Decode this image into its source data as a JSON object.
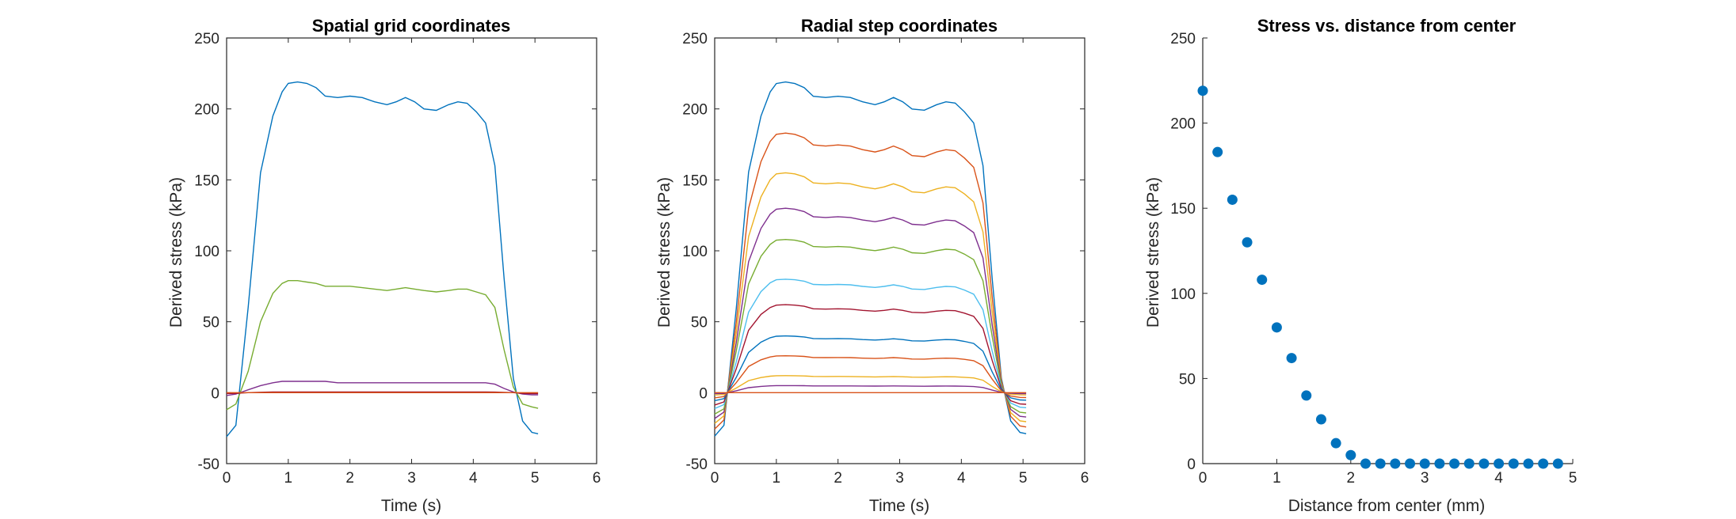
{
  "chart_data": [
    {
      "type": "line",
      "title": "Spatial grid coordinates",
      "xlabel": "Time (s)",
      "ylabel": "Derived stress (kPa)",
      "xlim": [
        0,
        6
      ],
      "ylim": [
        -50,
        250
      ],
      "xticks": [
        "0",
        "1",
        "2",
        "3",
        "4",
        "5",
        "6"
      ],
      "yticks": [
        "-50",
        "0",
        "50",
        "100",
        "150",
        "200",
        "250"
      ],
      "box": true,
      "grid": false,
      "x": [
        0,
        0.15,
        0.35,
        0.55,
        0.75,
        0.9,
        1.0,
        1.15,
        1.3,
        1.45,
        1.6,
        1.8,
        2.0,
        2.2,
        2.4,
        2.6,
        2.75,
        2.9,
        3.05,
        3.2,
        3.4,
        3.6,
        3.75,
        3.9,
        4.05,
        4.2,
        4.35,
        4.5,
        4.65,
        4.8,
        4.95,
        5.05
      ],
      "series": [
        {
          "color": "#0072BD",
          "values": [
            -31,
            -23,
            60,
            155,
            195,
            212,
            218,
            219,
            218,
            215,
            209,
            208,
            209,
            208,
            205,
            203,
            205,
            208,
            205,
            200,
            199,
            203,
            205,
            204,
            198,
            190,
            160,
            80,
            10,
            -20,
            -28,
            -29
          ]
        },
        {
          "color": "#77AC30",
          "values": [
            -12,
            -8,
            15,
            50,
            70,
            77,
            79,
            79,
            78,
            77,
            75,
            75,
            75,
            74,
            73,
            72,
            73,
            74,
            73,
            72,
            71,
            72,
            73,
            73,
            71,
            69,
            60,
            30,
            4,
            -8,
            -10,
            -11
          ]
        },
        {
          "color": "#7E2F8E",
          "values": [
            -2,
            -1,
            2,
            5,
            7,
            8,
            8,
            8,
            8,
            8,
            8,
            7,
            7,
            7,
            7,
            7,
            7,
            7,
            7,
            7,
            7,
            7,
            7,
            7,
            7,
            7,
            6,
            3,
            0.5,
            -1,
            -1.5,
            -1.5
          ]
        },
        {
          "color": "#A2142F",
          "values": [
            -0.6,
            -0.5,
            0,
            0.3,
            0.5,
            0.5,
            0.5,
            0.5,
            0.5,
            0.5,
            0.5,
            0.5,
            0.5,
            0.5,
            0.5,
            0.5,
            0.5,
            0.5,
            0.5,
            0.5,
            0.5,
            0.5,
            0.5,
            0.5,
            0.5,
            0.5,
            0.4,
            0.2,
            0,
            -0.5,
            -0.6,
            -0.6
          ]
        },
        {
          "color": "#D95319",
          "values": [
            0,
            0,
            0,
            0,
            0,
            0,
            0,
            0,
            0,
            0,
            0,
            0,
            0,
            0,
            0,
            0,
            0,
            0,
            0,
            0,
            0,
            0,
            0,
            0,
            0,
            0,
            0,
            0,
            0,
            0,
            0,
            0
          ]
        }
      ]
    },
    {
      "type": "line",
      "title": "Radial step coordinates",
      "xlabel": "Time (s)",
      "ylabel": "Derived stress (kPa)",
      "xlim": [
        0,
        6
      ],
      "ylim": [
        -50,
        250
      ],
      "xticks": [
        "0",
        "1",
        "2",
        "3",
        "4",
        "5",
        "6"
      ],
      "yticks": [
        "-50",
        "0",
        "50",
        "100",
        "150",
        "200",
        "250"
      ],
      "box": true,
      "grid": false,
      "x": [
        0,
        0.15,
        0.35,
        0.55,
        0.75,
        0.9,
        1.0,
        1.15,
        1.3,
        1.45,
        1.6,
        1.8,
        2.0,
        2.2,
        2.4,
        2.6,
        2.75,
        2.9,
        3.05,
        3.2,
        3.4,
        3.6,
        3.75,
        3.9,
        4.05,
        4.2,
        4.35,
        4.5,
        4.65,
        4.8,
        4.95,
        5.05
      ],
      "profile": [
        -0.14,
        -0.105,
        0.27,
        0.71,
        0.89,
        0.968,
        0.995,
        1.0,
        0.995,
        0.982,
        0.954,
        0.95,
        0.954,
        0.95,
        0.936,
        0.927,
        0.936,
        0.95,
        0.936,
        0.913,
        0.909,
        0.927,
        0.936,
        0.932,
        0.904,
        0.868,
        0.731,
        0.365,
        0.046,
        -0.091,
        -0.128,
        -0.132
      ],
      "peaks": [
        219,
        183,
        155,
        130,
        108,
        80,
        62,
        40,
        26,
        12,
        5,
        0
      ],
      "series": [
        {
          "color": "#0072BD",
          "peak": 219
        },
        {
          "color": "#D95319",
          "peak": 183
        },
        {
          "color": "#EDB120",
          "peak": 155
        },
        {
          "color": "#7E2F8E",
          "peak": 130
        },
        {
          "color": "#77AC30",
          "peak": 108
        },
        {
          "color": "#4DBEEE",
          "peak": 80
        },
        {
          "color": "#A2142F",
          "peak": 62
        },
        {
          "color": "#0072BD",
          "peak": 40
        },
        {
          "color": "#D95319",
          "peak": 26
        },
        {
          "color": "#EDB120",
          "peak": 12
        },
        {
          "color": "#7E2F8E",
          "peak": 5
        },
        {
          "color": "#D95319",
          "peak": 0
        }
      ]
    },
    {
      "type": "scatter",
      "title": "Stress vs. distance from center",
      "xlabel": "Distance from center (mm)",
      "ylabel": "Derived stress (kPa)",
      "xlim": [
        0,
        5
      ],
      "ylim": [
        0,
        250
      ],
      "xticks": [
        "0",
        "1",
        "2",
        "3",
        "4",
        "5"
      ],
      "yticks": [
        "0",
        "50",
        "100",
        "150",
        "200",
        "250"
      ],
      "box": false,
      "grid": false,
      "color": "#0072BD",
      "x": [
        0,
        0.2,
        0.4,
        0.6,
        0.8,
        1.0,
        1.2,
        1.4,
        1.6,
        1.8,
        2.0,
        2.2,
        2.4,
        2.6,
        2.8,
        3.0,
        3.2,
        3.4,
        3.6,
        3.8,
        4.0,
        4.2,
        4.4,
        4.6,
        4.8
      ],
      "y": [
        219,
        183,
        155,
        130,
        108,
        80,
        62,
        40,
        26,
        12,
        5,
        0,
        0,
        0,
        0,
        0,
        0,
        0,
        0,
        0,
        0,
        0,
        0,
        0,
        0
      ]
    }
  ]
}
